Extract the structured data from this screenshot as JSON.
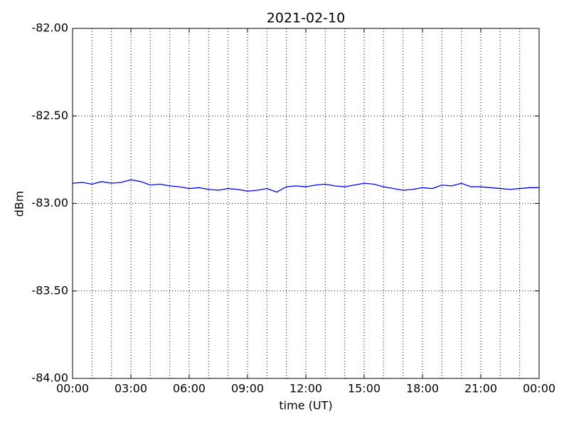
{
  "chart_data": {
    "type": "line",
    "title": "2021-02-10",
    "xlabel": "time (UT)",
    "ylabel": "dBm",
    "x": [
      0,
      0.5,
      1,
      1.5,
      2,
      2.5,
      3,
      3.5,
      4,
      4.5,
      5,
      5.5,
      6,
      6.5,
      7,
      7.5,
      8,
      8.5,
      9,
      9.5,
      10,
      10.5,
      11,
      11.5,
      12,
      12.5,
      13,
      13.5,
      14,
      14.5,
      15,
      15.5,
      16,
      16.5,
      17,
      17.5,
      18,
      18.5,
      19,
      19.5,
      20,
      20.5,
      21,
      21.5,
      22,
      22.5,
      23,
      23.5,
      24
    ],
    "series": [
      {
        "name": "dBm",
        "color": "#0000ff",
        "values": [
          -82.885,
          -82.88,
          -82.89,
          -82.875,
          -82.885,
          -82.88,
          -82.865,
          -82.875,
          -82.895,
          -82.89,
          -82.9,
          -82.905,
          -82.915,
          -82.91,
          -82.92,
          -82.925,
          -82.915,
          -82.92,
          -82.93,
          -82.925,
          -82.915,
          -82.935,
          -82.905,
          -82.9,
          -82.905,
          -82.895,
          -82.89,
          -82.9,
          -82.905,
          -82.895,
          -82.885,
          -82.89,
          -82.905,
          -82.915,
          -82.925,
          -82.92,
          -82.91,
          -82.915,
          -82.895,
          -82.9,
          -82.885,
          -82.905,
          -82.905,
          -82.91,
          -82.915,
          -82.92,
          -82.915,
          -82.91,
          -82.91
        ]
      }
    ],
    "xlim": [
      0,
      24
    ],
    "xticks": [
      {
        "value": 0,
        "label": "00:00"
      },
      {
        "value": 3,
        "label": "03:00"
      },
      {
        "value": 6,
        "label": "06:00"
      },
      {
        "value": 9,
        "label": "09:00"
      },
      {
        "value": 12,
        "label": "12:00"
      },
      {
        "value": 15,
        "label": "15:00"
      },
      {
        "value": 18,
        "label": "18:00"
      },
      {
        "value": 21,
        "label": "21:00"
      },
      {
        "value": 24,
        "label": "00:00"
      }
    ],
    "xminorticks": [
      1,
      2,
      4,
      5,
      7,
      8,
      10,
      11,
      13,
      14,
      16,
      17,
      19,
      20,
      22,
      23
    ],
    "ylim": [
      -84,
      -82
    ],
    "yticks": [
      {
        "value": -84,
        "label": "-84.00"
      },
      {
        "value": -83.5,
        "label": "-83.50"
      },
      {
        "value": -83,
        "label": "-83.00"
      },
      {
        "value": -82.5,
        "label": "-82.50"
      },
      {
        "value": -82,
        "label": "-82.00"
      }
    ],
    "grid": true
  }
}
